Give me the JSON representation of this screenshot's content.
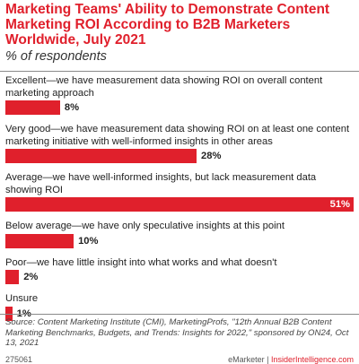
{
  "chart_data": {
    "type": "bar",
    "orientation": "horizontal",
    "title": "Marketing Teams' Ability to Demonstrate Content Marketing ROI According to B2B Marketers Worldwide, July 2021",
    "subtitle": "% of respondents",
    "unit_suffix": "%",
    "xlim": [
      0,
      51
    ],
    "grid": false,
    "legend": "none",
    "bar_color": "#e0202c",
    "categories": [
      "Excellent—we have measurement data showing ROI on overall content marketing approach",
      "Very good—we have measurement data showing ROI on at least one content marketing initiative with well-informed insights in other areas",
      "Average—we have well-informed insights, but lack measurement data showing ROI",
      "Below average—we have only speculative insights at this point",
      "Poor—we have little insight into what works and what doesn't",
      "Unsure"
    ],
    "values": [
      8,
      28,
      51,
      10,
      2,
      1
    ]
  },
  "source": "Source: Content Marketing Institute (CMI), MarketingProfs, \"12th Annual B2B Content Marketing Benchmarks, Budgets, and Trends: Insights for 2022,\" sponsored by ON24, Oct 13, 2021",
  "chart_id": "275061",
  "brand": {
    "name": "eMarketer",
    "separator": " | ",
    "site": "InsiderIntelligence.com"
  }
}
